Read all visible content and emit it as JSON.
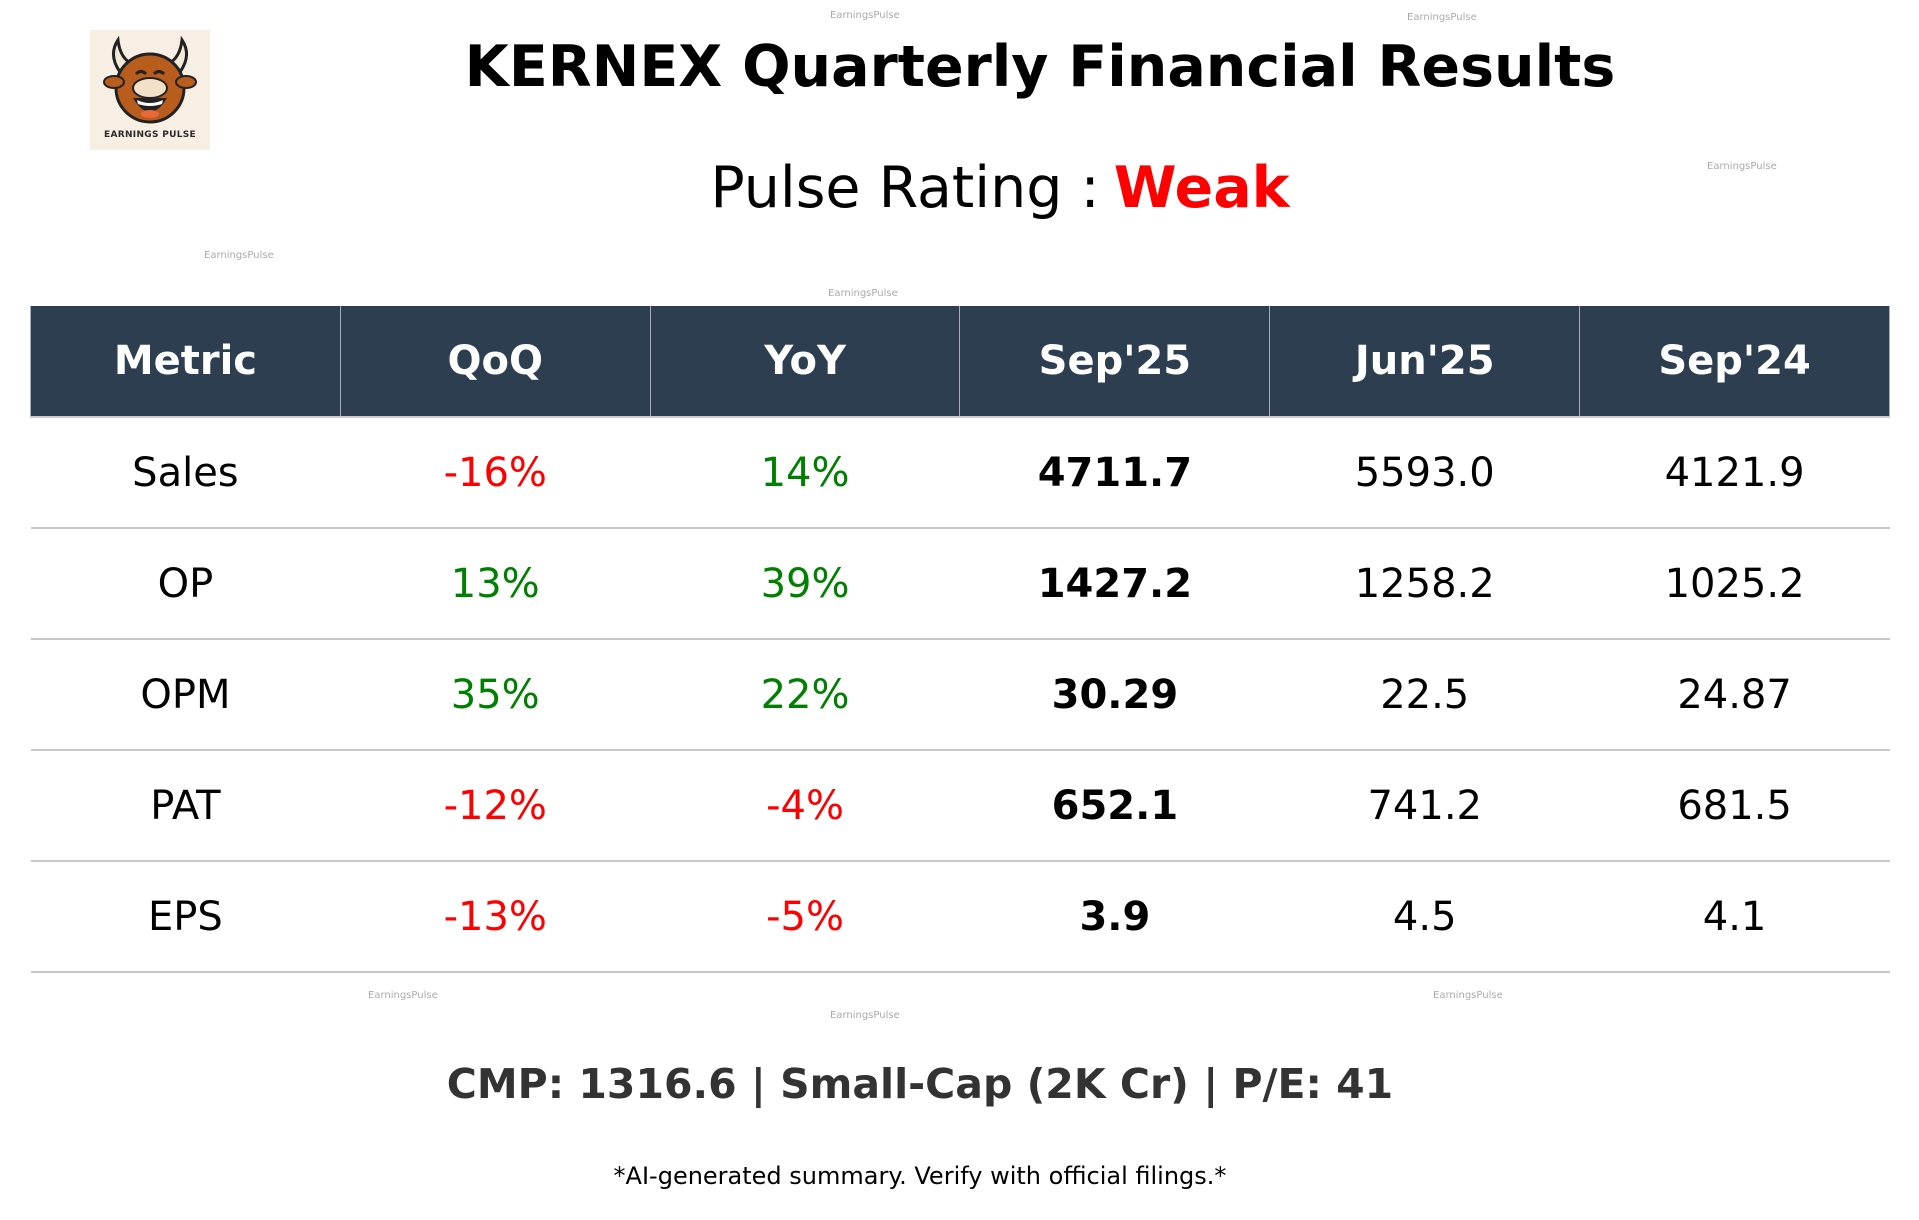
{
  "logo": {
    "text": "EARNINGS PULSE",
    "icon": "smiling-bull-logo"
  },
  "title": "KERNEX Quarterly Financial Results",
  "rating": {
    "label": "Pulse Rating :",
    "value": "Weak",
    "color": "#ff0000"
  },
  "table": {
    "headers": [
      "Metric",
      "QoQ",
      "YoY",
      "Sep'25",
      "Jun'25",
      "Sep'24"
    ],
    "rows": [
      {
        "metric": "Sales",
        "qoq": "-16%",
        "yoy": "14%",
        "sep25": "4711.7",
        "jun25": "5593.0",
        "sep24": "4121.9"
      },
      {
        "metric": "OP",
        "qoq": "13%",
        "yoy": "39%",
        "sep25": "1427.2",
        "jun25": "1258.2",
        "sep24": "1025.2"
      },
      {
        "metric": "OPM",
        "qoq": "35%",
        "yoy": "22%",
        "sep25": "30.29",
        "jun25": "22.5",
        "sep24": "24.87"
      },
      {
        "metric": "PAT",
        "qoq": "-12%",
        "yoy": "-4%",
        "sep25": "652.1",
        "jun25": "741.2",
        "sep24": "681.5"
      },
      {
        "metric": "EPS",
        "qoq": "-13%",
        "yoy": "-5%",
        "sep25": "3.9",
        "jun25": "4.5",
        "sep24": "4.1"
      }
    ],
    "header_bg": "#2e3e51",
    "positive_color": "#008000",
    "negative_color": "#ff0000"
  },
  "summary": "CMP: 1316.6 | Small-Cap (2K Cr) | P/E: 41",
  "disclaimer": "*AI-generated summary. Verify with official filings.*",
  "watermark": "EarningsPulse"
}
